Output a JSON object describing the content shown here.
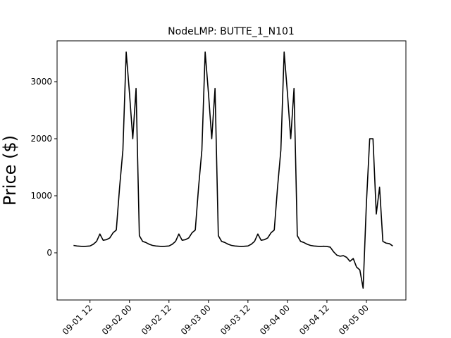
{
  "chart_data": {
    "type": "line",
    "title": "NodeLMP: BUTTE_1_N101",
    "ylabel": "Price ($)",
    "x": [
      "09-01 07",
      "09-01 08",
      "09-01 09",
      "09-01 10",
      "09-01 11",
      "09-01 12",
      "09-01 13",
      "09-01 14",
      "09-01 15",
      "09-01 16",
      "09-01 17",
      "09-01 18",
      "09-01 19",
      "09-01 20",
      "09-01 21",
      "09-01 22",
      "09-01 23",
      "09-02 00",
      "09-02 01",
      "09-02 02",
      "09-02 03",
      "09-02 04",
      "09-02 05",
      "09-02 06",
      "09-02 07",
      "09-02 08",
      "09-02 09",
      "09-02 10",
      "09-02 11",
      "09-02 12",
      "09-02 13",
      "09-02 14",
      "09-02 15",
      "09-02 16",
      "09-02 17",
      "09-02 18",
      "09-02 19",
      "09-02 20",
      "09-02 21",
      "09-02 22",
      "09-02 23",
      "09-03 00",
      "09-03 01",
      "09-03 02",
      "09-03 03",
      "09-03 04",
      "09-03 05",
      "09-03 06",
      "09-03 07",
      "09-03 08",
      "09-03 09",
      "09-03 10",
      "09-03 11",
      "09-03 12",
      "09-03 13",
      "09-03 14",
      "09-03 15",
      "09-03 16",
      "09-03 17",
      "09-03 18",
      "09-03 19",
      "09-03 20",
      "09-03 21",
      "09-03 22",
      "09-03 23",
      "09-04 00",
      "09-04 01",
      "09-04 02",
      "09-04 03",
      "09-04 04",
      "09-04 05",
      "09-04 06",
      "09-04 07",
      "09-04 08",
      "09-04 09",
      "09-04 10",
      "09-04 11",
      "09-04 12",
      "09-04 13",
      "09-04 14",
      "09-04 15",
      "09-04 16",
      "09-04 17",
      "09-04 18",
      "09-04 19",
      "09-04 20",
      "09-04 21",
      "09-04 22",
      "09-04 23",
      "09-05 00",
      "09-05 01",
      "09-05 02",
      "09-05 03",
      "09-05 04",
      "09-05 05",
      "09-05 06",
      "09-05 07",
      "09-05 08"
    ],
    "series": [
      {
        "color": "#000000",
        "values": [
          130,
          120,
          115,
          110,
          115,
          120,
          150,
          200,
          330,
          220,
          230,
          260,
          350,
          400,
          1150,
          1800,
          3520,
          2800,
          2000,
          2880,
          300,
          200,
          180,
          150,
          130,
          120,
          115,
          110,
          115,
          120,
          150,
          200,
          330,
          220,
          230,
          260,
          350,
          400,
          1150,
          1800,
          3520,
          2800,
          2000,
          2880,
          300,
          200,
          180,
          150,
          130,
          120,
          115,
          110,
          115,
          120,
          150,
          200,
          330,
          220,
          230,
          260,
          350,
          400,
          1150,
          1800,
          3520,
          2800,
          2000,
          2880,
          300,
          200,
          180,
          150,
          130,
          120,
          115,
          110,
          115,
          110,
          100,
          20,
          -40,
          -60,
          -50,
          -80,
          -150,
          -100,
          -250,
          -300,
          -620,
          870,
          2000,
          2000,
          680,
          1150,
          200,
          170,
          160,
          120
        ]
      }
    ],
    "xlim": [
      "09-01 02",
      "09-05 12"
    ],
    "xticks": [
      "09-01 12",
      "09-02 00",
      "09-02 12",
      "09-03 00",
      "09-03 12",
      "09-04 00",
      "09-04 12",
      "09-05 00"
    ],
    "ylim": [
      -827,
      3716
    ],
    "yticks": [
      0,
      1000,
      2000,
      3000
    ]
  }
}
